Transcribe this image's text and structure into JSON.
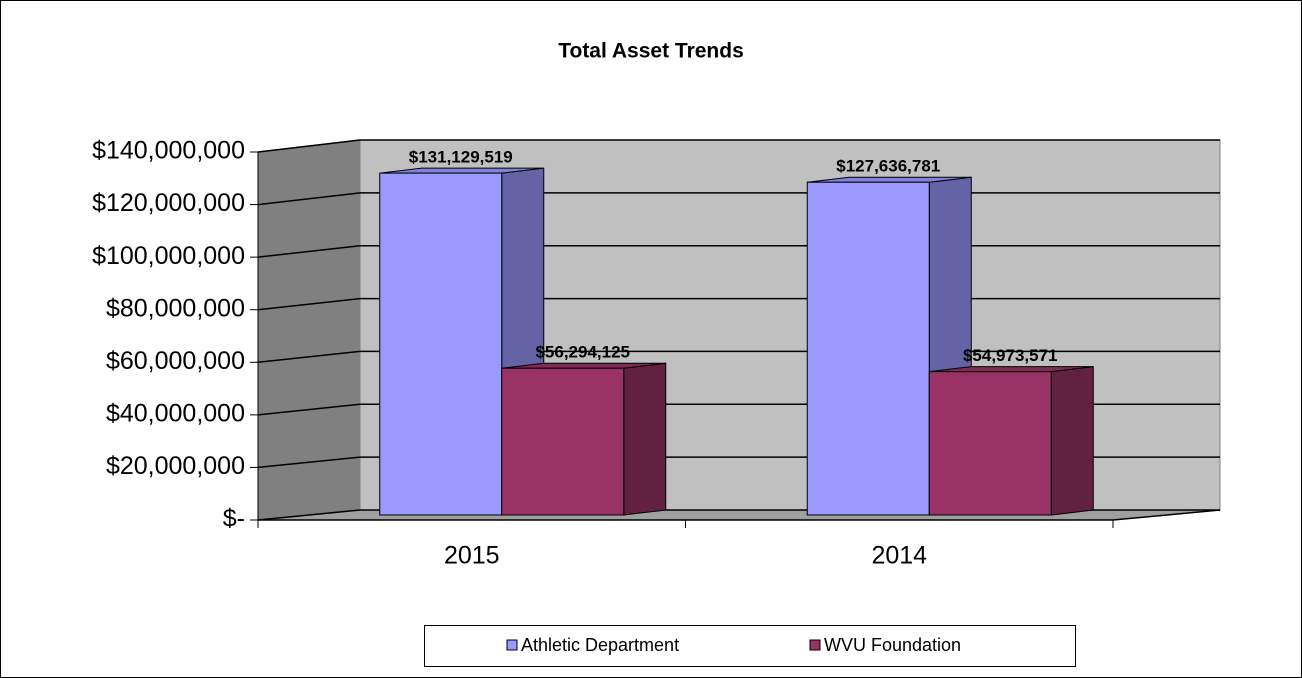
{
  "chart_data": {
    "type": "bar3d",
    "title": "Total Asset Trends",
    "categories": [
      "2015",
      "2014"
    ],
    "series": [
      {
        "name": "Athletic Department",
        "color": "#9999ff",
        "values": [
          131129519,
          127636781
        ],
        "value_labels": [
          "$131,129,519",
          "$127,636,781"
        ]
      },
      {
        "name": "WVU Foundation",
        "color": "#993366",
        "values": [
          56294125,
          54973571
        ],
        "value_labels": [
          "$56,294,125",
          "$54,973,571"
        ]
      }
    ],
    "ylim": [
      0,
      140000000
    ],
    "yticks": [
      {
        "value": 0,
        "label": "$-"
      },
      {
        "value": 20000000,
        "label": "$20,000,000"
      },
      {
        "value": 40000000,
        "label": "$40,000,000"
      },
      {
        "value": 60000000,
        "label": "$60,000,000"
      },
      {
        "value": 80000000,
        "label": "$80,000,000"
      },
      {
        "value": 100000000,
        "label": "$100,000,000"
      },
      {
        "value": 120000000,
        "label": "$120,000,000"
      },
      {
        "value": 140000000,
        "label": "$140,000,000"
      }
    ],
    "grid": true,
    "legend": "bottom"
  }
}
